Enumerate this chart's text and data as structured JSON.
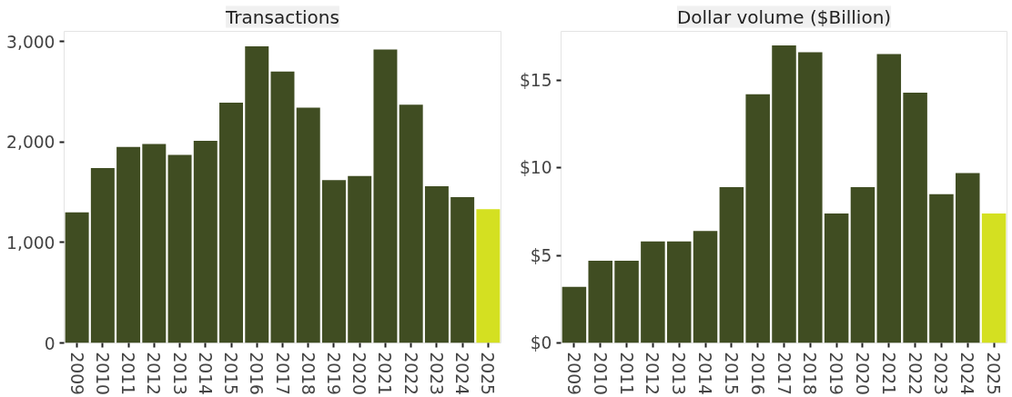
{
  "chart_data": [
    {
      "type": "bar",
      "title": "Transactions",
      "categories": [
        "2009",
        "2010",
        "2011",
        "2012",
        "2013",
        "2014",
        "2015",
        "2016",
        "2017",
        "2018",
        "2019",
        "2020",
        "2021",
        "2022",
        "2023",
        "2024",
        "2025"
      ],
      "values": [
        1300,
        1740,
        1950,
        1980,
        1870,
        2010,
        2390,
        2950,
        2700,
        2340,
        1620,
        1660,
        2920,
        2370,
        1560,
        1450,
        1330
      ],
      "colors": [
        "#404d22",
        "#404d22",
        "#404d22",
        "#404d22",
        "#404d22",
        "#404d22",
        "#404d22",
        "#404d22",
        "#404d22",
        "#404d22",
        "#404d22",
        "#404d22",
        "#404d22",
        "#404d22",
        "#404d22",
        "#404d22",
        "#d4e021"
      ],
      "ylim": [
        0,
        3100
      ],
      "yticks": [
        0,
        {
          "value": 1000,
          "label": "1,000"
        },
        {
          "value": 2000,
          "label": "2,000"
        },
        {
          "value": 3000,
          "label": "3,000"
        }
      ]
    },
    {
      "type": "bar",
      "title": "Dollar volume ($Billion)",
      "categories": [
        "2009",
        "2010",
        "2011",
        "2012",
        "2013",
        "2014",
        "2015",
        "2016",
        "2017",
        "2018",
        "2019",
        "2020",
        "2021",
        "2022",
        "2023",
        "2024",
        "2025"
      ],
      "values": [
        3.2,
        4.7,
        4.7,
        5.8,
        5.8,
        6.4,
        8.9,
        14.2,
        17.0,
        16.6,
        7.4,
        8.9,
        16.5,
        14.3,
        8.5,
        9.7,
        7.4
      ],
      "colors": [
        "#404d22",
        "#404d22",
        "#404d22",
        "#404d22",
        "#404d22",
        "#404d22",
        "#404d22",
        "#404d22",
        "#404d22",
        "#404d22",
        "#404d22",
        "#404d22",
        "#404d22",
        "#404d22",
        "#404d22",
        "#404d22",
        "#d4e021"
      ],
      "ylim": [
        0,
        17.8
      ],
      "yticks": [
        {
          "value": 0,
          "label": "$0"
        },
        {
          "value": 5,
          "label": "$5"
        },
        {
          "value": 10,
          "label": "$10"
        },
        {
          "value": 15,
          "label": "$15"
        }
      ]
    }
  ]
}
